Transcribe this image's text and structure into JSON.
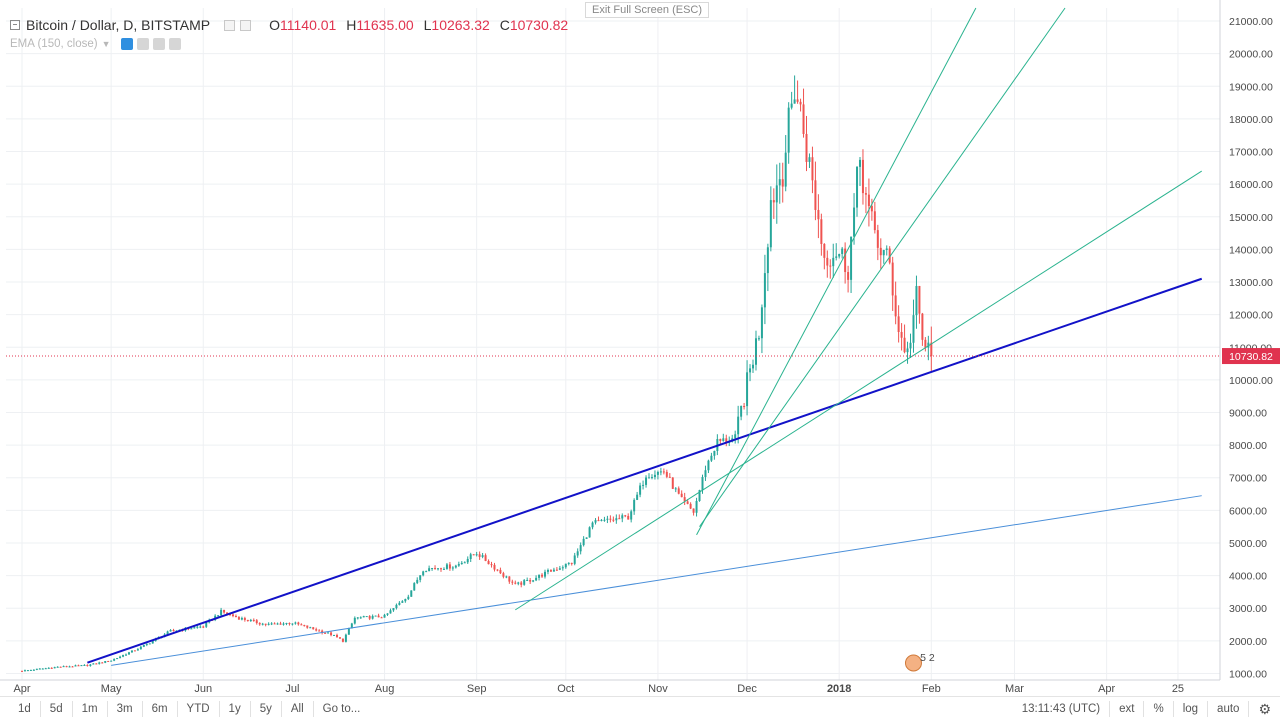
{
  "header": {
    "symbol": "Bitcoin / Dollar, D, BITSTAMP",
    "ohlc": [
      {
        "key": "O",
        "value": "11140.01"
      },
      {
        "key": "H",
        "value": "11635.00"
      },
      {
        "key": "L",
        "value": "10263.32"
      },
      {
        "key": "C",
        "value": "10730.82"
      }
    ],
    "indicator": "EMA (150, close)",
    "exit_fullscreen": "Exit Full Screen (ESC)"
  },
  "colors": {
    "up": "#26a69a",
    "down": "#ef5350",
    "trend_main": "#1212c8",
    "trend_green": "#2ab38f",
    "trend_blue": "#4a8fd9",
    "last_price": "#e0334f"
  },
  "chart_data": {
    "type": "candlestick",
    "title": "Bitcoin / Dollar, D, BITSTAMP",
    "ylim": [
      800,
      21400
    ],
    "y_ticks": [
      "21000.00",
      "20000.00",
      "19000.00",
      "18000.00",
      "17000.00",
      "16000.00",
      "15000.00",
      "14000.00",
      "13000.00",
      "12000.00",
      "11000.00",
      "10000.00",
      "9000.00",
      "8000.00",
      "7000.00",
      "6000.00",
      "5000.00",
      "4000.00",
      "3000.00",
      "2000.00",
      "1000.00"
    ],
    "x_labels": [
      {
        "label": "Apr",
        "d": 0
      },
      {
        "label": "May",
        "d": 30
      },
      {
        "label": "Jun",
        "d": 61
      },
      {
        "label": "Jul",
        "d": 91
      },
      {
        "label": "Aug",
        "d": 122
      },
      {
        "label": "Sep",
        "d": 153
      },
      {
        "label": "Oct",
        "d": 183
      },
      {
        "label": "Nov",
        "d": 214
      },
      {
        "label": "Dec",
        "d": 244
      },
      {
        "label": "2018",
        "d": 275
      },
      {
        "label": "Feb",
        "d": 306
      },
      {
        "label": "Mar",
        "d": 334
      },
      {
        "label": "Apr",
        "d": 365
      },
      {
        "label": "25",
        "d": 389
      }
    ],
    "last_price": {
      "value": 10730.82,
      "label": "10730.82"
    },
    "trendlines": [
      {
        "style": "main",
        "p1": {
          "d": 22,
          "p": 1330
        },
        "p2": {
          "d": 397,
          "p": 13100
        }
      },
      {
        "style": "blue",
        "p1": {
          "d": 30,
          "p": 1250
        },
        "p2": {
          "d": 397,
          "p": 6450
        }
      },
      {
        "style": "green",
        "p1": {
          "d": 166,
          "p": 2950
        },
        "p2": {
          "d": 397,
          "p": 16400
        }
      },
      {
        "style": "green",
        "p1": {
          "d": 227,
          "p": 5250
        },
        "p2": {
          "d": 321,
          "p": 21400
        }
      },
      {
        "style": "green",
        "p1": {
          "d": 228,
          "p": 5500
        },
        "p2": {
          "d": 351,
          "p": 21400
        }
      }
    ],
    "anchors": [
      {
        "d": 0,
        "p": 1080
      },
      {
        "d": 12,
        "p": 1200
      },
      {
        "d": 22,
        "p": 1250
      },
      {
        "d": 30,
        "p": 1400
      },
      {
        "d": 40,
        "p": 1800
      },
      {
        "d": 50,
        "p": 2300
      },
      {
        "d": 61,
        "p": 2450
      },
      {
        "d": 67,
        "p": 2900
      },
      {
        "d": 73,
        "p": 2700
      },
      {
        "d": 82,
        "p": 2500
      },
      {
        "d": 91,
        "p": 2550
      },
      {
        "d": 104,
        "p": 2200
      },
      {
        "d": 108,
        "p": 2000
      },
      {
        "d": 112,
        "p": 2700
      },
      {
        "d": 122,
        "p": 2750
      },
      {
        "d": 130,
        "p": 3400
      },
      {
        "d": 135,
        "p": 4200
      },
      {
        "d": 140,
        "p": 4250
      },
      {
        "d": 146,
        "p": 4300
      },
      {
        "d": 153,
        "p": 4700
      },
      {
        "d": 159,
        "p": 4250
      },
      {
        "d": 166,
        "p": 3700
      },
      {
        "d": 172,
        "p": 3900
      },
      {
        "d": 178,
        "p": 4150
      },
      {
        "d": 185,
        "p": 4400
      },
      {
        "d": 192,
        "p": 5600
      },
      {
        "d": 198,
        "p": 5700
      },
      {
        "d": 204,
        "p": 5800
      },
      {
        "d": 210,
        "p": 7100
      },
      {
        "d": 216,
        "p": 7200
      },
      {
        "d": 222,
        "p": 6300
      },
      {
        "d": 226,
        "p": 5950
      },
      {
        "d": 230,
        "p": 7300
      },
      {
        "d": 234,
        "p": 8100
      },
      {
        "d": 240,
        "p": 8200
      },
      {
        "d": 244,
        "p": 9900
      },
      {
        "d": 248,
        "p": 11500
      },
      {
        "d": 252,
        "p": 15500
      },
      {
        "d": 256,
        "p": 16500
      },
      {
        "d": 260,
        "p": 19000
      },
      {
        "d": 262,
        "p": 18200
      },
      {
        "d": 266,
        "p": 16000
      },
      {
        "d": 270,
        "p": 13800
      },
      {
        "d": 274,
        "p": 14000
      },
      {
        "d": 278,
        "p": 13500
      },
      {
        "d": 282,
        "p": 16800
      },
      {
        "d": 285,
        "p": 15000
      },
      {
        "d": 289,
        "p": 14000
      },
      {
        "d": 292,
        "p": 13500
      },
      {
        "d": 295,
        "p": 11500
      },
      {
        "d": 298,
        "p": 10800
      },
      {
        "d": 301,
        "p": 12500
      },
      {
        "d": 303,
        "p": 11200
      },
      {
        "d": 306,
        "p": 10730
      }
    ],
    "markers": {
      "label": "5 2"
    }
  },
  "bottom_bar": {
    "timeframes": [
      "1d",
      "5d",
      "1m",
      "3m",
      "6m",
      "YTD",
      "1y",
      "5y",
      "All"
    ],
    "goto": "Go to...",
    "clock": "13:11:43 (UTC)",
    "ext": "ext",
    "percent": "%",
    "log": "log",
    "auto": "auto"
  }
}
